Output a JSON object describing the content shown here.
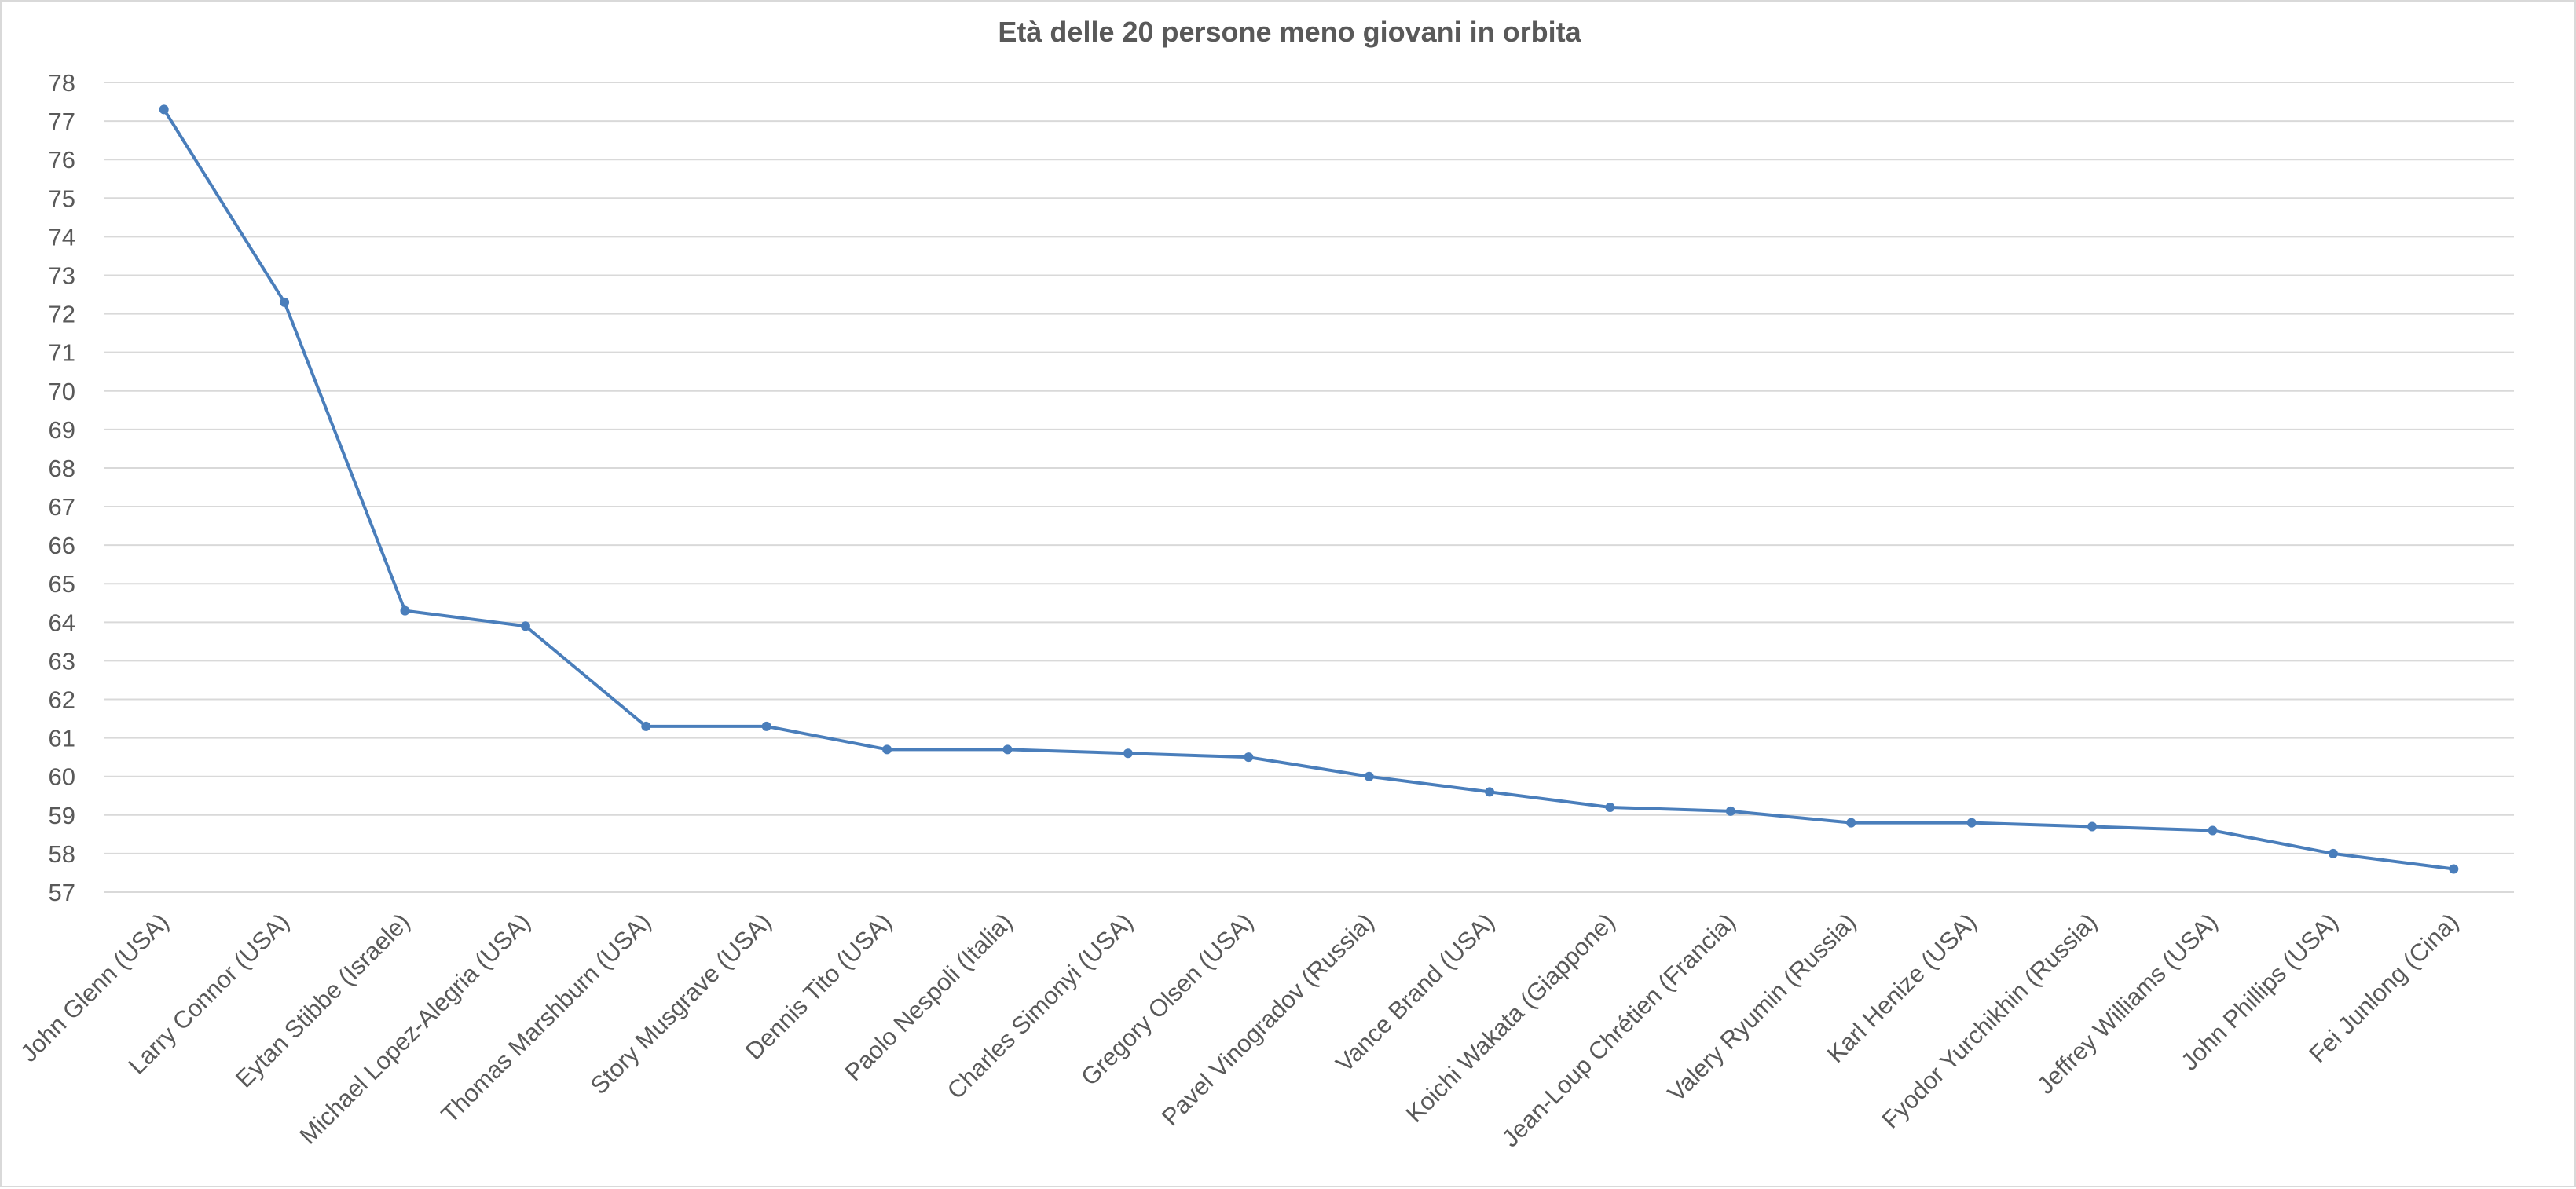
{
  "chart_data": {
    "type": "line",
    "title": "Età delle 20 persone meno giovani in orbita",
    "xlabel": "",
    "ylabel": "",
    "ylim": [
      57,
      78
    ],
    "yticks": [
      57,
      58,
      59,
      60,
      61,
      62,
      63,
      64,
      65,
      66,
      67,
      68,
      69,
      70,
      71,
      72,
      73,
      74,
      75,
      76,
      77,
      78
    ],
    "grid": true,
    "legend": "none",
    "categories": [
      "John Glenn (USA)",
      "Larry Connor (USA)",
      "Eytan Stibbe (Israele)",
      "Michael Lopez-Alegria (USA)",
      "Thomas Marshburn (USA)",
      "Story Musgrave (USA)",
      "Dennis Tito (USA)",
      "Paolo Nespoli (Italia)",
      "Charles Simonyi (USA)",
      "Gregory Olsen (USA)",
      "Pavel Vinogradov (Russia)",
      "Vance Brand (USA)",
      "Koichi Wakata (Giappone)",
      "Jean-Loup Chrétien (Francia)",
      "Valery Ryumin (Russia)",
      "Karl Henize (USA)",
      "Fyodor Yurchikhin (Russia)",
      "Jeffrey Williams (USA)",
      "John Phillips (USA)",
      "Fei Junlong (Cina)"
    ],
    "series": [
      {
        "color": "#4a7ebb",
        "values": [
          77.3,
          72.3,
          64.3,
          63.9,
          61.3,
          61.3,
          60.7,
          60.7,
          60.6,
          60.5,
          60.0,
          59.6,
          59.2,
          59.1,
          58.8,
          58.8,
          58.7,
          58.6,
          58.0,
          57.6
        ]
      }
    ]
  }
}
